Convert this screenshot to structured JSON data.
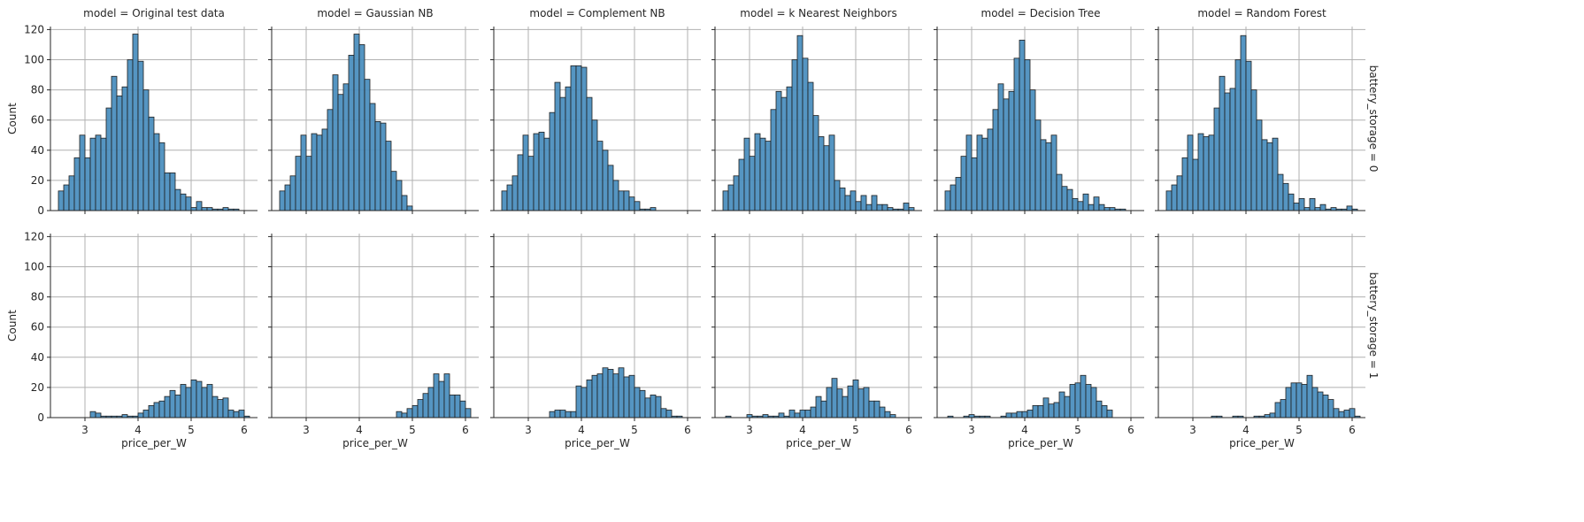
{
  "chart_data": {
    "type": "histogram-facet-grid",
    "col_var": "model",
    "row_var": "battery_storage",
    "col_titles": [
      "model = Original test data",
      "model = Gaussian NB",
      "model = Complement NB",
      "model = k Nearest Neighbors",
      "model = Decision Tree",
      "model = Random Forest"
    ],
    "row_titles": [
      "battery_storage = 0",
      "battery_storage = 1"
    ],
    "xlabel": "price_per_W",
    "ylabel": "Count",
    "xlim": [
      2.35,
      6.25
    ],
    "ylim": [
      0,
      122
    ],
    "xticks": [
      3,
      4,
      5,
      6
    ],
    "yticks": [
      0,
      20,
      40,
      60,
      80,
      100,
      120
    ],
    "grid": true,
    "bar_color": "#4c8fbf",
    "bar_edge_color": "#1f1f1f",
    "bin_start": 2.5,
    "bin_width": 0.1,
    "panels": [
      [
        [
          13,
          17,
          23,
          35,
          50,
          35,
          48,
          50,
          48,
          68,
          89,
          76,
          82,
          100,
          117,
          99,
          80,
          62,
          51,
          45,
          25,
          25,
          14,
          11,
          9,
          2,
          6,
          2,
          2,
          1,
          1,
          2,
          1,
          1,
          0,
          0
        ],
        [
          13,
          17,
          23,
          36,
          50,
          36,
          51,
          50,
          54,
          67,
          90,
          77,
          84,
          103,
          117,
          110,
          87,
          71,
          59,
          58,
          46,
          26,
          20,
          10,
          3,
          0,
          0,
          0,
          0,
          0,
          0,
          0,
          0,
          0,
          0,
          0
        ],
        [
          13,
          17,
          23,
          37,
          50,
          36,
          51,
          52,
          48,
          65,
          85,
          75,
          82,
          96,
          96,
          95,
          75,
          60,
          46,
          40,
          30,
          20,
          13,
          13,
          9,
          6,
          1,
          1,
          2,
          0,
          0,
          0,
          0,
          0,
          0,
          0
        ],
        [
          13,
          17,
          23,
          34,
          48,
          36,
          51,
          48,
          46,
          67,
          79,
          75,
          82,
          100,
          116,
          101,
          85,
          63,
          49,
          43,
          50,
          20,
          15,
          10,
          13,
          6,
          10,
          4,
          10,
          4,
          4,
          2,
          1,
          1,
          5,
          2
        ],
        [
          13,
          17,
          22,
          36,
          50,
          35,
          50,
          48,
          54,
          67,
          84,
          74,
          79,
          101,
          113,
          100,
          80,
          60,
          47,
          45,
          50,
          24,
          16,
          14,
          8,
          6,
          11,
          4,
          9,
          4,
          2,
          2,
          1,
          1,
          0,
          0
        ],
        [
          13,
          17,
          23,
          35,
          50,
          34,
          51,
          49,
          50,
          68,
          89,
          78,
          81,
          100,
          116,
          99,
          80,
          60,
          47,
          45,
          48,
          24,
          18,
          11,
          5,
          8,
          2,
          8,
          2,
          4,
          1,
          2,
          1,
          1,
          3,
          1
        ]
      ],
      [
        [
          0,
          0,
          0,
          0,
          0,
          0,
          4,
          3,
          1,
          1,
          1,
          1,
          2,
          1,
          1,
          3,
          5,
          8,
          10,
          11,
          14,
          18,
          15,
          22,
          20,
          25,
          24,
          20,
          22,
          14,
          12,
          13,
          5,
          4,
          5,
          1
        ],
        [
          0,
          0,
          0,
          0,
          0,
          0,
          0,
          0,
          0,
          0,
          0,
          0,
          0,
          0,
          0,
          0,
          0,
          0,
          0,
          0,
          0,
          0,
          4,
          3,
          6,
          8,
          12,
          16,
          20,
          29,
          24,
          29,
          15,
          15,
          11,
          6
        ],
        [
          0,
          0,
          0,
          0,
          0,
          0,
          0,
          0,
          0,
          4,
          5,
          5,
          4,
          4,
          21,
          20,
          25,
          28,
          29,
          33,
          32,
          29,
          33,
          27,
          28,
          20,
          18,
          13,
          15,
          14,
          6,
          5,
          1,
          1,
          0,
          0
        ],
        [
          0,
          0,
          0,
          0,
          0,
          0,
          0,
          0,
          0,
          0,
          0,
          0,
          0,
          0,
          0,
          0,
          0,
          0,
          0,
          0,
          0,
          0,
          0,
          0,
          0,
          0,
          0,
          0,
          0,
          0,
          0,
          0,
          0,
          0,
          0,
          0
        ],
        [
          0,
          0,
          0,
          0,
          0,
          0,
          0,
          0,
          0,
          0,
          0,
          0,
          0,
          0,
          0,
          0,
          0,
          0,
          0,
          0,
          0,
          0,
          0,
          0,
          0,
          0,
          0,
          0,
          0,
          0,
          0,
          0,
          0,
          0,
          0,
          0
        ],
        [
          0,
          0,
          0,
          0,
          0,
          0,
          0,
          0,
          0,
          0,
          0,
          0,
          0,
          0,
          0,
          0,
          0,
          0,
          0,
          0,
          0,
          0,
          0,
          0,
          0,
          0,
          0,
          0,
          0,
          0,
          0,
          0,
          0,
          0,
          0,
          0
        ]
      ]
    ],
    "row1_extra": [
      null,
      null,
      null,
      {
        "bin_start": 2.55,
        "counts": [
          1,
          0,
          0,
          0,
          2,
          1,
          1,
          2,
          1,
          1,
          3,
          1,
          5,
          3,
          5,
          5,
          7,
          14,
          11,
          20,
          26,
          19,
          14,
          21,
          25,
          19,
          20,
          11,
          11,
          7,
          4,
          2,
          0,
          0,
          0
        ]
      },
      {
        "bin_start": 2.55,
        "counts": [
          1,
          0,
          0,
          1,
          2,
          1,
          1,
          1,
          0,
          0,
          1,
          3,
          3,
          4,
          4,
          5,
          8,
          8,
          13,
          9,
          10,
          17,
          14,
          22,
          23,
          28,
          22,
          20,
          11,
          8,
          5,
          0,
          0,
          0,
          0
        ]
      },
      {
        "bin_start": 2.55,
        "counts": [
          0,
          0,
          0,
          0,
          0,
          0,
          0,
          0,
          1,
          1,
          0,
          0,
          1,
          1,
          0,
          0,
          1,
          1,
          2,
          3,
          10,
          12,
          20,
          23,
          23,
          22,
          28,
          20,
          17,
          15,
          12,
          6,
          4,
          5,
          6,
          1
        ]
      }
    ]
  }
}
